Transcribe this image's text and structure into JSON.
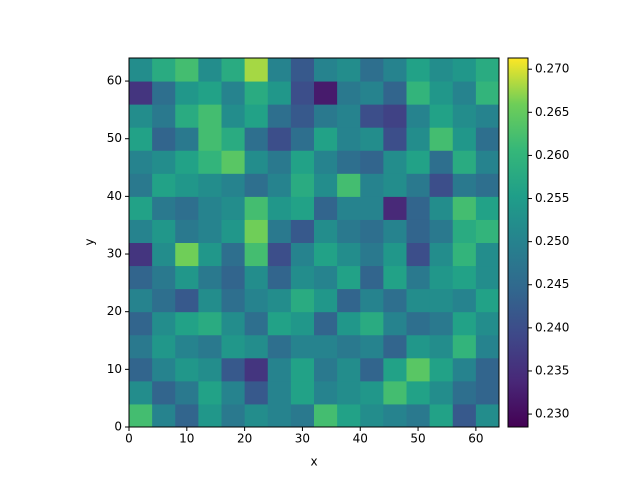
{
  "chart_data": {
    "type": "heatmap",
    "colormap": "viridis",
    "x_label": "x",
    "y_label": "y",
    "x": [
      0,
      4,
      8,
      12,
      16,
      20,
      24,
      28,
      32,
      36,
      40,
      44,
      48,
      52,
      56,
      60,
      64
    ],
    "y": [
      0,
      4,
      8,
      12,
      16,
      20,
      24,
      28,
      32,
      36,
      40,
      44,
      48,
      52,
      56,
      60,
      64
    ],
    "z": [
      [
        0.262,
        0.25,
        0.244,
        0.254,
        0.248,
        0.252,
        0.25,
        0.248,
        0.262,
        0.256,
        0.252,
        0.25,
        0.248,
        0.256,
        0.242,
        0.252
      ],
      [
        0.252,
        0.244,
        0.248,
        0.256,
        0.25,
        0.242,
        0.25,
        0.256,
        0.25,
        0.252,
        0.254,
        0.262,
        0.256,
        0.252,
        0.246,
        0.244
      ],
      [
        0.244,
        0.25,
        0.254,
        0.252,
        0.242,
        0.236,
        0.25,
        0.256,
        0.248,
        0.252,
        0.244,
        0.256,
        0.264,
        0.256,
        0.25,
        0.244
      ],
      [
        0.248,
        0.254,
        0.25,
        0.248,
        0.254,
        0.252,
        0.246,
        0.25,
        0.25,
        0.248,
        0.25,
        0.244,
        0.254,
        0.252,
        0.26,
        0.25
      ],
      [
        0.244,
        0.252,
        0.256,
        0.258,
        0.252,
        0.246,
        0.256,
        0.254,
        0.244,
        0.254,
        0.258,
        0.25,
        0.246,
        0.248,
        0.256,
        0.252
      ],
      [
        0.25,
        0.246,
        0.242,
        0.252,
        0.246,
        0.25,
        0.252,
        0.258,
        0.254,
        0.244,
        0.25,
        0.246,
        0.252,
        0.252,
        0.25,
        0.256
      ],
      [
        0.244,
        0.248,
        0.254,
        0.248,
        0.244,
        0.252,
        0.244,
        0.252,
        0.25,
        0.256,
        0.244,
        0.256,
        0.248,
        0.254,
        0.256,
        0.252
      ],
      [
        0.236,
        0.252,
        0.266,
        0.254,
        0.246,
        0.262,
        0.24,
        0.25,
        0.256,
        0.252,
        0.248,
        0.254,
        0.24,
        0.252,
        0.26,
        0.252
      ],
      [
        0.25,
        0.254,
        0.248,
        0.25,
        0.254,
        0.266,
        0.248,
        0.242,
        0.252,
        0.248,
        0.246,
        0.25,
        0.244,
        0.248,
        0.258,
        0.26
      ],
      [
        0.256,
        0.248,
        0.246,
        0.25,
        0.252,
        0.262,
        0.254,
        0.256,
        0.244,
        0.25,
        0.25,
        0.234,
        0.244,
        0.252,
        0.262,
        0.256
      ],
      [
        0.248,
        0.256,
        0.254,
        0.252,
        0.25,
        0.246,
        0.25,
        0.258,
        0.252,
        0.262,
        0.25,
        0.252,
        0.248,
        0.24,
        0.248,
        0.246
      ],
      [
        0.25,
        0.252,
        0.256,
        0.26,
        0.264,
        0.252,
        0.248,
        0.256,
        0.25,
        0.246,
        0.244,
        0.252,
        0.256,
        0.246,
        0.258,
        0.25
      ],
      [
        0.256,
        0.244,
        0.248,
        0.262,
        0.258,
        0.246,
        0.24,
        0.246,
        0.256,
        0.25,
        0.252,
        0.24,
        0.252,
        0.262,
        0.254,
        0.246
      ],
      [
        0.252,
        0.248,
        0.258,
        0.262,
        0.252,
        0.256,
        0.246,
        0.242,
        0.248,
        0.25,
        0.24,
        0.238,
        0.25,
        0.256,
        0.252,
        0.25
      ],
      [
        0.236,
        0.246,
        0.254,
        0.256,
        0.25,
        0.258,
        0.254,
        0.24,
        0.232,
        0.248,
        0.25,
        0.244,
        0.26,
        0.254,
        0.25,
        0.26
      ],
      [
        0.252,
        0.258,
        0.262,
        0.252,
        0.258,
        0.268,
        0.25,
        0.242,
        0.25,
        0.252,
        0.246,
        0.25,
        0.256,
        0.252,
        0.254,
        0.258
      ]
    ],
    "xlim": [
      0,
      64
    ],
    "ylim": [
      0,
      64
    ],
    "xticks": [
      0,
      10,
      20,
      30,
      40,
      50,
      60
    ],
    "yticks": [
      0,
      10,
      20,
      30,
      40,
      50,
      60
    ],
    "clim": [
      0.2285,
      0.2713
    ],
    "cticks": [
      {
        "value": 0.23,
        "label": "0.230"
      },
      0.235,
      {
        "value": 0.24,
        "label": "0.240"
      },
      0.245,
      {
        "value": 0.25,
        "label": "0.250"
      },
      0.255,
      {
        "value": 0.26,
        "label": "0.260"
      },
      0.265,
      {
        "value": 0.27,
        "label": "0.270"
      }
    ]
  }
}
